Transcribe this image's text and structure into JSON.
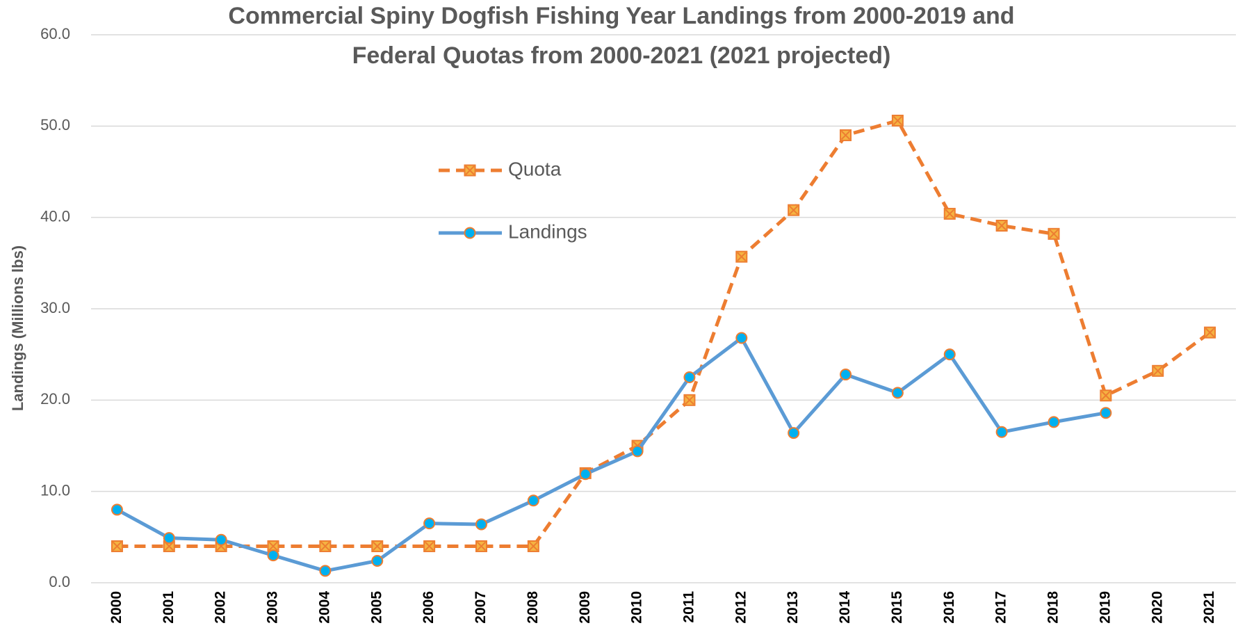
{
  "chart_data": {
    "type": "line",
    "title": [
      "Commercial Spiny Dogfish Fishing Year Landings from 2000-2019 and",
      "Federal Quotas from 2000-2021 (2021 projected)"
    ],
    "y_label": "Landings (Millions lbs)",
    "categories": [
      "2000",
      "2001",
      "2002",
      "2003",
      "2004",
      "2005",
      "2006",
      "2007",
      "2008",
      "2009",
      "2010",
      "2011",
      "2012",
      "2013",
      "2014",
      "2015",
      "2016",
      "2017",
      "2018",
      "2019",
      "2020",
      "2021"
    ],
    "series": [
      {
        "name": "Landings",
        "color": "#5b9bd5",
        "marker": "circle",
        "dashed": false,
        "values": [
          8.0,
          4.9,
          4.7,
          3.0,
          1.3,
          2.4,
          6.5,
          6.4,
          9.0,
          11.9,
          14.4,
          22.5,
          26.8,
          16.4,
          22.8,
          20.8,
          25.0,
          16.5,
          17.6,
          18.6,
          null,
          null
        ]
      },
      {
        "name": "Quota",
        "color": "#ed7d31",
        "marker": "square-x",
        "dashed": true,
        "values": [
          4,
          4,
          4,
          4,
          4,
          4,
          4,
          4,
          4,
          12,
          15,
          20,
          35.7,
          40.8,
          49,
          50.6,
          40.4,
          39.1,
          38.2,
          20.5,
          23.2,
          27.4
        ]
      }
    ],
    "ylim": [
      0,
      60
    ],
    "yticks": [
      {
        "value": 0,
        "label": "0.0"
      },
      {
        "value": 10,
        "label": "10.0"
      },
      {
        "value": 20,
        "label": "20.0"
      },
      {
        "value": 30,
        "label": "30.0"
      },
      {
        "value": 40,
        "label": "40.0"
      },
      {
        "value": 50,
        "label": "50.0"
      },
      {
        "value": 60,
        "label": "60.0"
      }
    ],
    "grid": true
  }
}
